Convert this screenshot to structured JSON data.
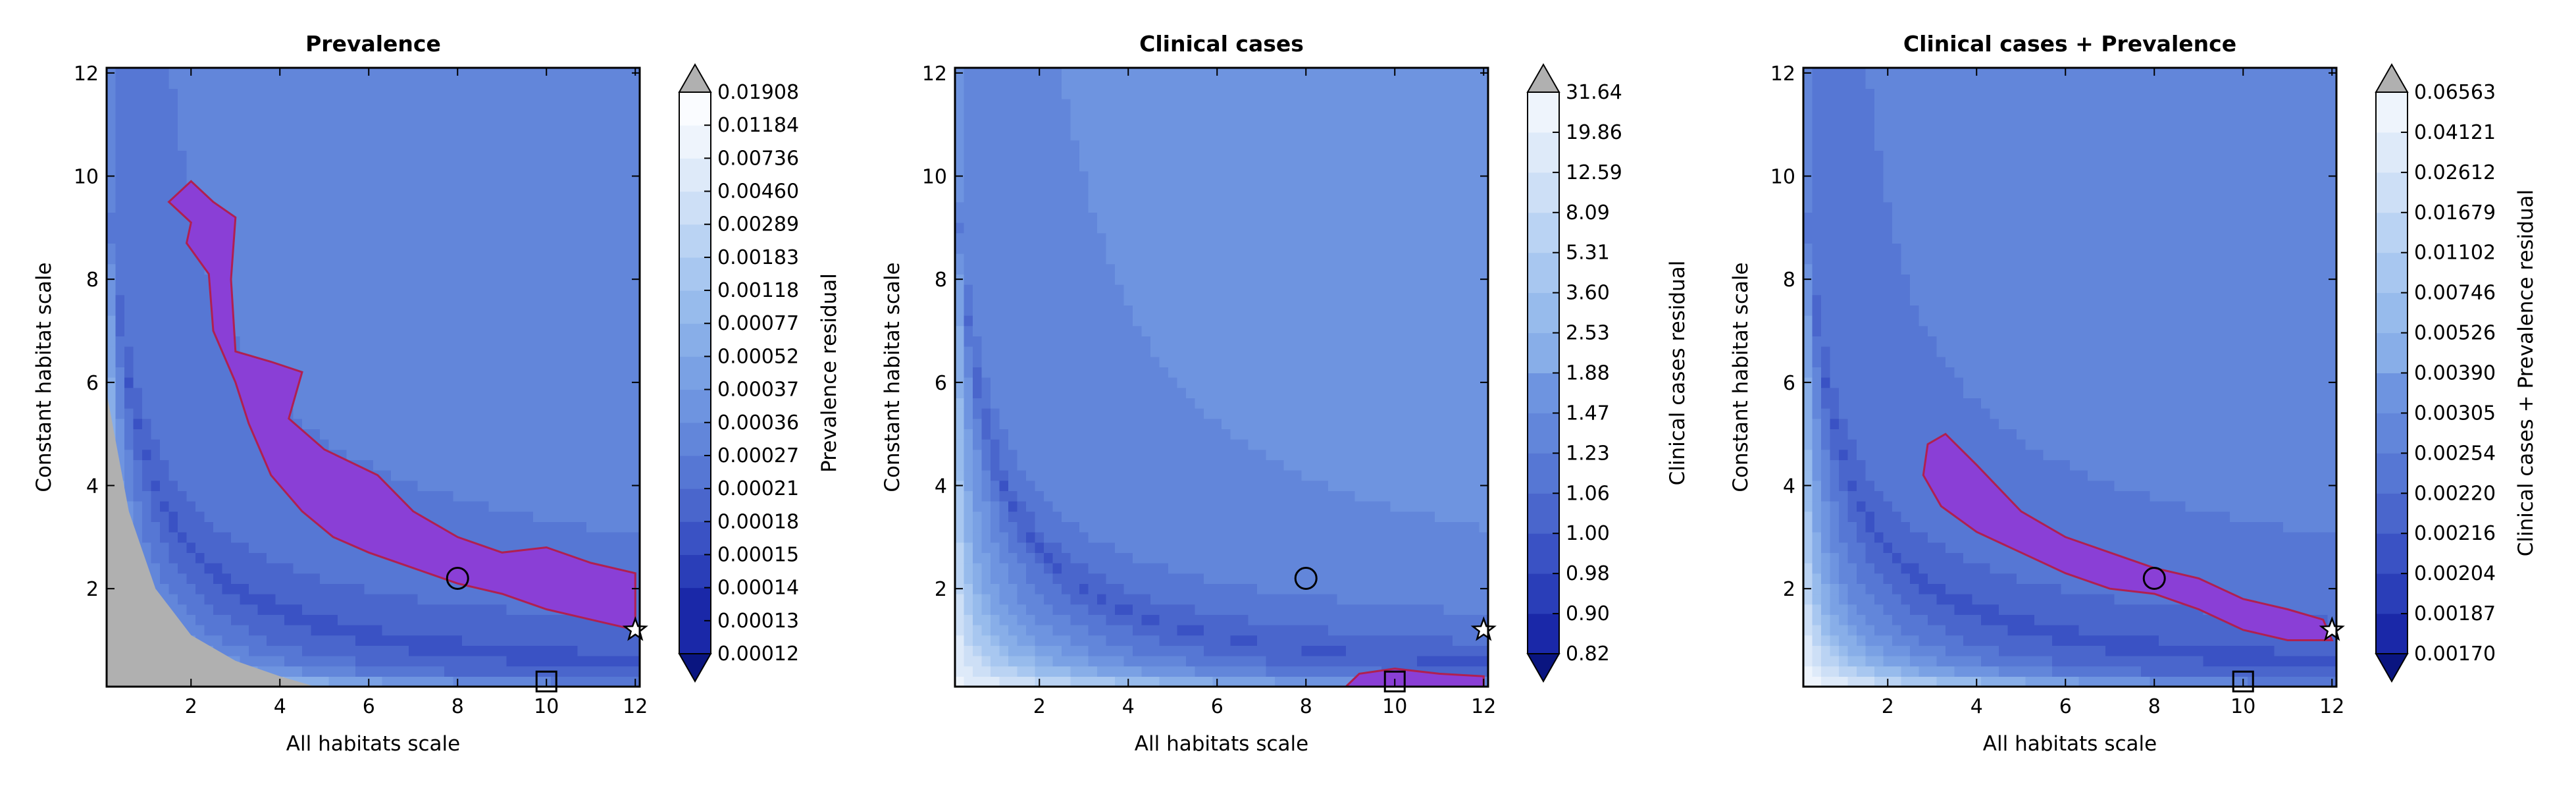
{
  "chart_data": [
    {
      "type": "heatmap",
      "title": "Prevalence",
      "xlabel": "All habitats scale",
      "ylabel": "Constant habitat scale",
      "xlim": [
        0.1,
        12.1
      ],
      "ylim": [
        0.1,
        12.1
      ],
      "xticks": [
        "2",
        "4",
        "6",
        "8",
        "10",
        "12"
      ],
      "yticks": [
        "2",
        "4",
        "6",
        "8",
        "10",
        "12"
      ],
      "colorbar_label": "Prevalence residual",
      "colorbar_levels": [
        "0.00012",
        "0.00013",
        "0.00014",
        "0.00015",
        "0.00018",
        "0.00021",
        "0.00027",
        "0.00036",
        "0.00037",
        "0.00052",
        "0.00077",
        "0.00118",
        "0.00183",
        "0.00289",
        "0.00460",
        "0.00736",
        "0.01184",
        "0.01908"
      ],
      "best_region_color": "#8a3fd6",
      "markers": [
        {
          "shape": "circle",
          "x": 8.0,
          "y": 2.2
        },
        {
          "shape": "square",
          "x": 10.0,
          "y": 0.2
        },
        {
          "shape": "star",
          "x": 12.0,
          "y": 1.2
        }
      ],
      "best_region": [
        [
          1.5,
          9.5
        ],
        [
          2.0,
          9.1
        ],
        [
          1.9,
          8.7
        ],
        [
          2.4,
          8.1
        ],
        [
          2.5,
          7.0
        ],
        [
          3.0,
          6.0
        ],
        [
          3.3,
          5.2
        ],
        [
          3.8,
          4.2
        ],
        [
          4.5,
          3.5
        ],
        [
          5.2,
          3.0
        ],
        [
          6.0,
          2.7
        ],
        [
          7.0,
          2.4
        ],
        [
          8.0,
          2.1
        ],
        [
          9.0,
          1.9
        ],
        [
          10.0,
          1.6
        ],
        [
          11.0,
          1.4
        ],
        [
          12.0,
          1.2
        ],
        [
          12.0,
          2.3
        ],
        [
          11.0,
          2.5
        ],
        [
          10.0,
          2.8
        ],
        [
          9.0,
          2.7
        ],
        [
          8.0,
          3.0
        ],
        [
          7.0,
          3.5
        ],
        [
          6.2,
          4.2
        ],
        [
          5.0,
          4.7
        ],
        [
          4.2,
          5.3
        ],
        [
          4.5,
          6.2
        ],
        [
          3.8,
          6.4
        ],
        [
          3.0,
          6.6
        ],
        [
          2.9,
          8.0
        ],
        [
          3.0,
          9.2
        ],
        [
          2.5,
          9.5
        ],
        [
          2.0,
          9.9
        ]
      ],
      "gray_region": [
        [
          0.1,
          0.1
        ],
        [
          0.1,
          5.8
        ],
        [
          0.6,
          3.5
        ],
        [
          1.2,
          2.0
        ],
        [
          2.0,
          1.1
        ],
        [
          3.0,
          0.6
        ],
        [
          4.0,
          0.3
        ],
        [
          4.8,
          0.1
        ]
      ],
      "colors": [
        "#1a28a8",
        "#2a3eb8",
        "#3a52c4",
        "#4a66cc",
        "#5677d4",
        "#6286da",
        "#6e94e0",
        "#7aa1e4",
        "#88aee8",
        "#97bbec",
        "#a8c7f0",
        "#bad3f3",
        "#cddff6",
        "#deeaf9",
        "#eef4fc",
        "#fafcff"
      ]
    },
    {
      "type": "heatmap",
      "title": "Clinical cases",
      "xlabel": "All habitats scale",
      "ylabel": "Constant habitat scale",
      "xlim": [
        0.1,
        12.1
      ],
      "ylim": [
        0.1,
        12.1
      ],
      "xticks": [
        "2",
        "4",
        "6",
        "8",
        "10",
        "12"
      ],
      "yticks": [
        "2",
        "4",
        "6",
        "8",
        "10",
        "12"
      ],
      "colorbar_label": "Clinical cases residual",
      "colorbar_levels": [
        "0.82",
        "0.90",
        "0.98",
        "1.00",
        "1.06",
        "1.23",
        "1.47",
        "1.88",
        "2.53",
        "3.60",
        "5.31",
        "8.09",
        "12.59",
        "19.86",
        "31.64"
      ],
      "best_region_color": "#8a3fd6",
      "markers": [
        {
          "shape": "circle",
          "x": 8.0,
          "y": 2.2
        },
        {
          "shape": "square",
          "x": 10.0,
          "y": 0.2
        },
        {
          "shape": "star",
          "x": 12.0,
          "y": 1.2
        }
      ],
      "best_region": [
        [
          8.9,
          0.1
        ],
        [
          9.2,
          0.35
        ],
        [
          10.0,
          0.45
        ],
        [
          11.0,
          0.35
        ],
        [
          12.0,
          0.3
        ],
        [
          12.0,
          0.1
        ]
      ],
      "gray_region": [],
      "colors": [
        "#1a28a8",
        "#2a3eb8",
        "#3a52c4",
        "#4a66cc",
        "#5677d4",
        "#6286da",
        "#6e94e0",
        "#7aa1e4",
        "#88aee8",
        "#97bbec",
        "#a8c7f0",
        "#bad3f3",
        "#cddff6",
        "#deeaf9",
        "#eef4fc",
        "#fafcff"
      ]
    },
    {
      "type": "heatmap",
      "title": "Clinical cases + Prevalence",
      "xlabel": "All habitats scale",
      "ylabel": "Constant habitat scale",
      "xlim": [
        0.1,
        12.1
      ],
      "ylim": [
        0.1,
        12.1
      ],
      "xticks": [
        "2",
        "4",
        "6",
        "8",
        "10",
        "12"
      ],
      "yticks": [
        "2",
        "4",
        "6",
        "8",
        "10",
        "12"
      ],
      "colorbar_label": "Clinical cases + Prevalence residual",
      "colorbar_levels": [
        "0.00170",
        "0.00187",
        "0.00204",
        "0.00216",
        "0.00220",
        "0.00254",
        "0.00305",
        "0.00390",
        "0.00526",
        "0.00746",
        "0.01102",
        "0.01679",
        "0.02612",
        "0.04121",
        "0.06563"
      ],
      "best_region_color": "#8a3fd6",
      "markers": [
        {
          "shape": "circle",
          "x": 8.0,
          "y": 2.2
        },
        {
          "shape": "square",
          "x": 10.0,
          "y": 0.2
        },
        {
          "shape": "star",
          "x": 12.0,
          "y": 1.2
        }
      ],
      "best_region": [
        [
          2.8,
          4.2
        ],
        [
          3.2,
          3.6
        ],
        [
          4.0,
          3.1
        ],
        [
          5.0,
          2.7
        ],
        [
          6.0,
          2.3
        ],
        [
          7.0,
          2.0
        ],
        [
          8.0,
          1.9
        ],
        [
          9.0,
          1.6
        ],
        [
          10.0,
          1.2
        ],
        [
          11.0,
          1.0
        ],
        [
          12.0,
          1.0
        ],
        [
          11.8,
          1.4
        ],
        [
          11.0,
          1.6
        ],
        [
          10.0,
          1.8
        ],
        [
          9.0,
          2.2
        ],
        [
          8.0,
          2.4
        ],
        [
          7.0,
          2.7
        ],
        [
          6.0,
          3.0
        ],
        [
          5.0,
          3.5
        ],
        [
          4.0,
          4.4
        ],
        [
          3.3,
          5.0
        ],
        [
          2.9,
          4.8
        ]
      ],
      "gray_region": [],
      "colors": [
        "#1a28a8",
        "#2a3eb8",
        "#3a52c4",
        "#4a66cc",
        "#5677d4",
        "#6286da",
        "#6e94e0",
        "#7aa1e4",
        "#88aee8",
        "#97bbec",
        "#a8c7f0",
        "#bad3f3",
        "#cddff6",
        "#deeaf9",
        "#eef4fc",
        "#fafcff"
      ]
    }
  ]
}
